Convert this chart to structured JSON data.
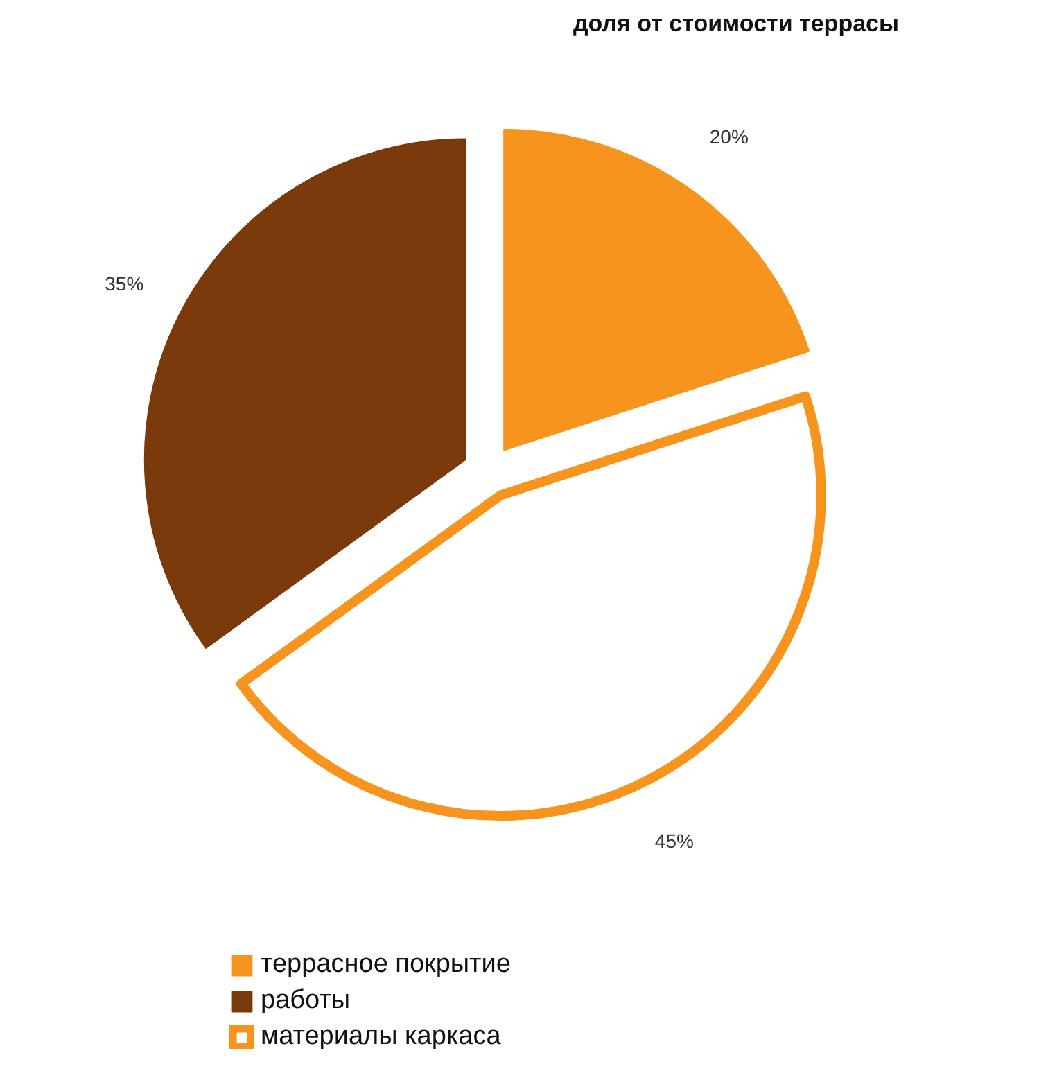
{
  "chart_data": {
    "type": "pie",
    "title": "доля от стоимости террасы",
    "categories": [
      "террасное покрытие",
      "работы",
      "материалы каркаса"
    ],
    "values": [
      20,
      35,
      45
    ],
    "colors": [
      "#f7941d",
      "#7a3a0c",
      "#ffffff"
    ],
    "value_labels": [
      "20%",
      "35%",
      "45%"
    ],
    "legend": "bottom left"
  }
}
